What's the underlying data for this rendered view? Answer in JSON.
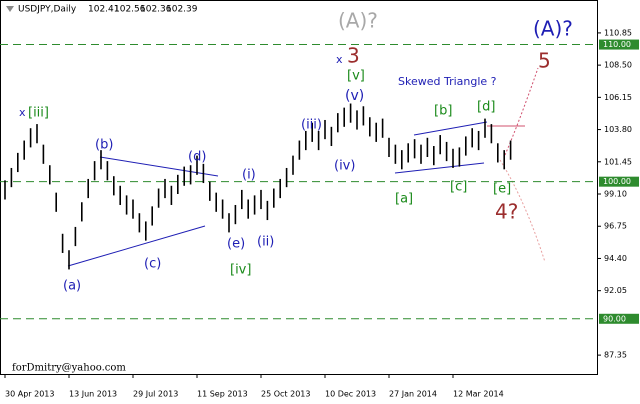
{
  "chart_data": {
    "type": "ohlc-bars",
    "title": "USDJPY,Daily",
    "quote": [
      "102.41",
      "102.56",
      "102.36",
      "102.39"
    ],
    "watermark": "forDmitry@yahoo.com",
    "color": "#000000",
    "categories": [
      "30 Apr 2013",
      null,
      null,
      null,
      null,
      null,
      null,
      null,
      null,
      null,
      "13 Jun 2013",
      null,
      null,
      null,
      null,
      null,
      null,
      null,
      null,
      null,
      "29 Jul 2013",
      null,
      null,
      null,
      null,
      null,
      null,
      null,
      null,
      null,
      "11 Sep 2013",
      null,
      null,
      null,
      null,
      null,
      null,
      null,
      null,
      null,
      "25 Oct 2013",
      null,
      null,
      null,
      null,
      null,
      null,
      null,
      null,
      null,
      "10 Dec 2013",
      null,
      null,
      null,
      null,
      null,
      null,
      null,
      null,
      null,
      "27 Jan 2014",
      null,
      null,
      null,
      null,
      null,
      null,
      null,
      null,
      null,
      "12 Mar 2014",
      null,
      null,
      null,
      null,
      null,
      null,
      null,
      null,
      null
    ],
    "high": [
      100.1,
      101.0,
      102.1,
      103.0,
      103.9,
      104.2,
      102.7,
      101.2,
      99.2,
      96.2,
      95.0,
      96.7,
      98.5,
      100.2,
      101.5,
      102.3,
      101.5,
      100.4,
      99.7,
      99.0,
      98.7,
      97.7,
      97.1,
      98.2,
      99.5,
      100.2,
      99.7,
      100.5,
      101.1,
      101.2,
      101.9,
      101.3,
      100.0,
      99.2,
      98.7,
      97.7,
      98.3,
      99.4,
      98.7,
      99.0,
      99.4,
      98.6,
      99.5,
      100.2,
      101.0,
      101.9,
      103.0,
      103.7,
      104.3,
      103.7,
      104.5,
      104.0,
      105.0,
      105.4,
      105.7,
      105.2,
      105.5,
      104.7,
      104.3,
      104.6,
      103.2,
      102.7,
      102.3,
      102.8,
      103.1,
      102.7,
      103.2,
      102.6,
      103.4,
      102.9,
      102.4,
      102.5,
      103.3,
      103.9,
      103.7,
      104.6,
      104.2,
      102.8,
      102.3,
      103.0
    ],
    "low": [
      98.7,
      99.6,
      100.7,
      101.6,
      102.5,
      102.8,
      101.3,
      99.8,
      97.8,
      94.8,
      93.6,
      95.3,
      97.1,
      98.8,
      100.1,
      100.9,
      100.1,
      99.0,
      98.3,
      97.6,
      97.3,
      96.3,
      95.7,
      96.8,
      98.1,
      98.8,
      98.3,
      99.1,
      99.7,
      99.8,
      100.5,
      99.9,
      98.6,
      97.8,
      97.3,
      96.3,
      96.9,
      98.0,
      97.3,
      97.6,
      98.0,
      97.2,
      98.1,
      98.8,
      99.6,
      100.5,
      101.6,
      102.3,
      102.9,
      102.3,
      103.1,
      102.6,
      103.6,
      104.0,
      104.3,
      103.8,
      104.1,
      103.3,
      102.9,
      103.2,
      101.8,
      101.3,
      100.9,
      101.4,
      101.7,
      101.3,
      101.8,
      101.2,
      102.0,
      101.5,
      101.0,
      101.1,
      101.9,
      102.5,
      102.3,
      103.2,
      102.8,
      101.4,
      100.9,
      101.6
    ],
    "ylim": [
      85.9,
      113.25
    ],
    "yticks": [
      110.85,
      {
        "value": 108.5,
        "label": "108.50"
      },
      106.15,
      {
        "value": 103.8,
        "label": "103.80"
      },
      101.45,
      {
        "value": 99.1,
        "label": "99.10"
      },
      96.75,
      {
        "value": 94.4,
        "label": "94.40"
      },
      92.05,
      87.35
    ],
    "levels": [
      {
        "value": 110,
        "label": "110.00"
      },
      {
        "value": 100,
        "label": "100.00"
      },
      {
        "value": 90,
        "label": "90.00"
      }
    ],
    "level_color": "#2e8b2e",
    "annotations": [
      {
        "text": "(A)?",
        "color": "#a8a8a8"
      },
      {
        "text": "(A)?",
        "color": "#1e1eb4"
      },
      {
        "text": "x",
        "color": "#1e1eb4"
      },
      {
        "text": "3",
        "color": "#9b2d2d"
      },
      {
        "text": "[v]",
        "color": "#1a8a1a"
      },
      {
        "text": "(v)",
        "color": "#1e1eb4"
      },
      {
        "text": "(iii)",
        "color": "#1e1eb4"
      },
      {
        "text": "(iv)",
        "color": "#1e1eb4"
      },
      {
        "text": "(i)",
        "color": "#1e1eb4"
      },
      {
        "text": "(ii)",
        "color": "#1e1eb4"
      },
      {
        "text": "(e)",
        "color": "#1e1eb4"
      },
      {
        "text": "[iv]",
        "color": "#1a8a1a"
      },
      {
        "text": "(d)",
        "color": "#1e1eb4"
      },
      {
        "text": "(b)",
        "color": "#1e1eb4"
      },
      {
        "text": "(c)",
        "color": "#1e1eb4"
      },
      {
        "text": "(a)",
        "color": "#1e1eb4"
      },
      {
        "text": "x",
        "color": "#1e1eb4"
      },
      {
        "text": "[iii]",
        "color": "#1a8a1a"
      },
      {
        "text": "Skewed Triangle ?",
        "color": "#1e1eb4"
      },
      {
        "text": "[b]",
        "color": "#1a8a1a"
      },
      {
        "text": "[d]",
        "color": "#1a8a1a"
      },
      {
        "text": "[a]",
        "color": "#1a8a1a"
      },
      {
        "text": "[c]",
        "color": "#1a8a1a"
      },
      {
        "text": "[e]",
        "color": "#1a8a1a"
      },
      {
        "text": "4?",
        "color": "#9b2d2d"
      },
      {
        "text": "5",
        "color": "#9b2d2d"
      }
    ]
  }
}
